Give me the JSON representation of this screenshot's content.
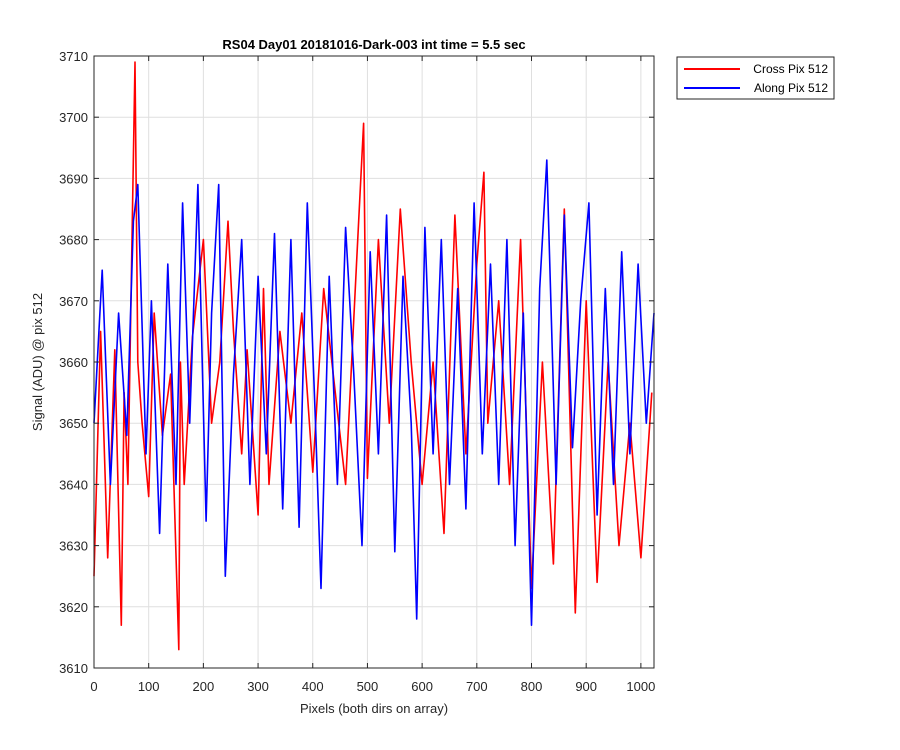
{
  "chart_data": {
    "type": "line",
    "title": "RS04 Day01 20181016-Dark-003 int time = 5.5 sec",
    "xlabel": "Pixels (both dirs on array)",
    "ylabel": "Signal (ADU) @ pix 512",
    "xlim": [
      0,
      1024
    ],
    "ylim": [
      3610,
      3710
    ],
    "xticks": [
      0,
      100,
      200,
      300,
      400,
      500,
      600,
      700,
      800,
      900,
      1000
    ],
    "yticks": [
      3610,
      3620,
      3630,
      3640,
      3650,
      3660,
      3670,
      3680,
      3690,
      3700,
      3710
    ],
    "xtick_labels": [
      "0",
      "100",
      "200",
      "300",
      "400",
      "500",
      "600",
      "700",
      "800",
      "900",
      "1000"
    ],
    "ytick_labels": [
      "3610",
      "3620",
      "3630",
      "3640",
      "3650",
      "3660",
      "3670",
      "3680",
      "3690",
      "3700",
      "3710"
    ],
    "grid": true,
    "legend_position": "top-right outside",
    "series": [
      {
        "name": "Cross Pix 512",
        "color": "#ff0000",
        "x": [
          0,
          12,
          25,
          38,
          50,
          55,
          62,
          70,
          75,
          80,
          88,
          100,
          110,
          125,
          140,
          155,
          158,
          165,
          180,
          200,
          215,
          230,
          245,
          255,
          270,
          280,
          300,
          310,
          320,
          340,
          360,
          380,
          400,
          420,
          440,
          460,
          480,
          493,
          500,
          520,
          540,
          560,
          580,
          600,
          620,
          640,
          660,
          680,
          700,
          713,
          720,
          740,
          760,
          780,
          800,
          820,
          840,
          860,
          880,
          900,
          920,
          940,
          960,
          980,
          1000,
          1020
        ],
        "y": [
          3625,
          3665,
          3628,
          3662,
          3617,
          3655,
          3640,
          3683,
          3709,
          3660,
          3650,
          3638,
          3668,
          3648,
          3658,
          3613,
          3660,
          3640,
          3664,
          3680,
          3650,
          3660,
          3683,
          3665,
          3645,
          3662,
          3635,
          3672,
          3640,
          3665,
          3650,
          3668,
          3642,
          3672,
          3656,
          3640,
          3676,
          3699,
          3641,
          3680,
          3650,
          3685,
          3660,
          3640,
          3660,
          3632,
          3684,
          3645,
          3676,
          3691,
          3650,
          3670,
          3640,
          3680,
          3623,
          3660,
          3627,
          3685,
          3619,
          3670,
          3624,
          3660,
          3630,
          3650,
          3628,
          3655
        ]
      },
      {
        "name": "Along Pix 512",
        "color": "#0000ff",
        "x": [
          0,
          15,
          30,
          45,
          60,
          72,
          80,
          95,
          105,
          120,
          135,
          150,
          162,
          175,
          190,
          205,
          215,
          228,
          240,
          255,
          270,
          285,
          300,
          315,
          330,
          345,
          360,
          375,
          390,
          405,
          415,
          430,
          445,
          460,
          475,
          490,
          505,
          520,
          535,
          550,
          565,
          580,
          590,
          605,
          620,
          635,
          650,
          665,
          680,
          695,
          710,
          725,
          740,
          755,
          770,
          785,
          800,
          815,
          828,
          845,
          860,
          875,
          890,
          905,
          920,
          935,
          950,
          965,
          980,
          995,
          1010,
          1024
        ],
        "y": [
          3650,
          3675,
          3640,
          3668,
          3648,
          3683,
          3689,
          3645,
          3670,
          3632,
          3676,
          3640,
          3686,
          3650,
          3689,
          3634,
          3668,
          3689,
          3625,
          3658,
          3680,
          3640,
          3674,
          3645,
          3681,
          3636,
          3680,
          3633,
          3686,
          3650,
          3623,
          3674,
          3640,
          3682,
          3658,
          3630,
          3678,
          3645,
          3684,
          3629,
          3674,
          3650,
          3618,
          3682,
          3645,
          3680,
          3640,
          3672,
          3636,
          3686,
          3645,
          3676,
          3640,
          3680,
          3630,
          3668,
          3617,
          3672,
          3693,
          3640,
          3684,
          3646,
          3670,
          3686,
          3635,
          3672,
          3640,
          3678,
          3645,
          3676,
          3650,
          3668
        ]
      }
    ]
  }
}
